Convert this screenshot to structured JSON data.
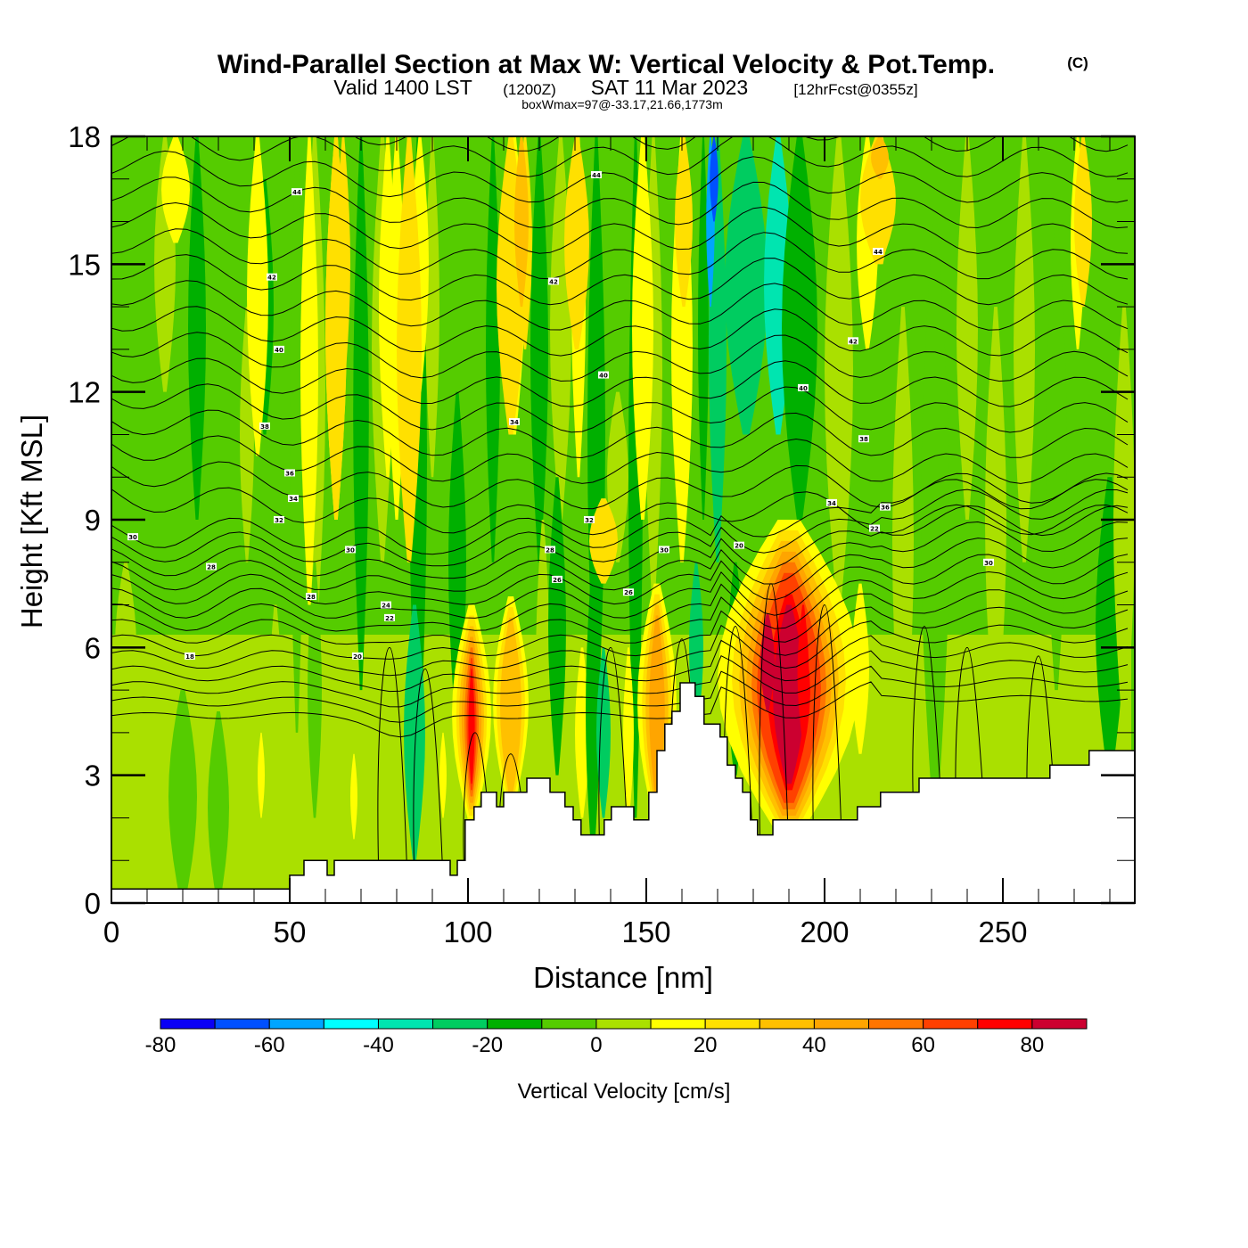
{
  "header": {
    "title": "Wind-Parallel Section at Max W: Vertical Velocity & Pot.Temp.",
    "copyright": "(C)",
    "valid_prefix": "Valid 1400 LST",
    "valid_utc": "(1200Z)",
    "valid_date": "SAT 11 Mar 2023",
    "forecast": "[12hrFcst@0355z]",
    "boxwmax": "boxWmax=97@-33.17,21.66,1773m"
  },
  "chart_data": {
    "type": "heatmap",
    "title": "Wind-Parallel Section at Max W: Vertical Velocity & Pot.Temp.",
    "xlabel": "Distance [nm]",
    "ylabel": "Height [Kft MSL]",
    "xlim": [
      0,
      287
    ],
    "ylim": [
      0,
      18
    ],
    "x_ticks": [
      "0",
      "50",
      "100",
      "150",
      "200",
      "250"
    ],
    "x_tick_values": [
      0,
      50,
      100,
      150,
      200,
      250
    ],
    "x_minor_step": 10,
    "y_ticks": [
      "0",
      "3",
      "6",
      "9",
      "12",
      "15",
      "18"
    ],
    "y_tick_values": [
      0,
      3,
      6,
      9,
      12,
      15,
      18
    ],
    "y_minor_step": 1,
    "colorbar": {
      "label": "Vertical Velocity [cm/s]",
      "levels": [
        -80,
        -70,
        -60,
        -50,
        -40,
        -30,
        -20,
        -10,
        0,
        10,
        20,
        30,
        40,
        50,
        60,
        70,
        80,
        90
      ],
      "colors": [
        "#0a00f5",
        "#0050ff",
        "#00a5ff",
        "#00ffff",
        "#00e5b0",
        "#00cc60",
        "#00b000",
        "#55cc00",
        "#aae000",
        "#ffff00",
        "#ffe000",
        "#ffc000",
        "#ffa500",
        "#ff7500",
        "#ff4000",
        "#ff0000",
        "#cc0030"
      ],
      "tick_labels": [
        "-80",
        "-60",
        "-40",
        "-20",
        "0",
        "20",
        "40",
        "60",
        "80"
      ],
      "tick_values": [
        -80,
        -60,
        -40,
        -20,
        0,
        20,
        40,
        60,
        80
      ]
    },
    "max_updraft": {
      "value": 97,
      "units": "cm/s",
      "distance_nm": 184,
      "height_kft": 5.5
    },
    "terrain_kft": [
      [
        0,
        0.33
      ],
      [
        50,
        0.33
      ],
      [
        50,
        0.65
      ],
      [
        54,
        0.65
      ],
      [
        54,
        1.0
      ],
      [
        60.5,
        1.0
      ],
      [
        60.5,
        0.65
      ],
      [
        62.5,
        0.65
      ],
      [
        62.5,
        1.0
      ],
      [
        95,
        1.0
      ],
      [
        95,
        0.65
      ],
      [
        97,
        0.65
      ],
      [
        97,
        1.0
      ],
      [
        99.2,
        1.0
      ],
      [
        99.2,
        1.95
      ],
      [
        101.7,
        1.95
      ],
      [
        101.7,
        2.26
      ],
      [
        103.7,
        2.26
      ],
      [
        103.7,
        2.6
      ],
      [
        108,
        2.6
      ],
      [
        108,
        2.26
      ],
      [
        110,
        2.26
      ],
      [
        110,
        2.6
      ],
      [
        116.5,
        2.6
      ],
      [
        116.5,
        2.93
      ],
      [
        123,
        2.93
      ],
      [
        123,
        2.6
      ],
      [
        127.2,
        2.6
      ],
      [
        127.2,
        2.26
      ],
      [
        129.5,
        2.26
      ],
      [
        129.5,
        1.95
      ],
      [
        131.7,
        1.95
      ],
      [
        131.7,
        1.6
      ],
      [
        138.2,
        1.6
      ],
      [
        138.2,
        1.95
      ],
      [
        140.2,
        1.95
      ],
      [
        140.2,
        2.26
      ],
      [
        146.5,
        2.26
      ],
      [
        146.5,
        1.95
      ],
      [
        150.7,
        1.95
      ],
      [
        150.7,
        2.6
      ],
      [
        153,
        2.6
      ],
      [
        153,
        3.58
      ],
      [
        155.2,
        3.58
      ],
      [
        155.2,
        4.2
      ],
      [
        157.2,
        4.2
      ],
      [
        157.2,
        4.5
      ],
      [
        159.5,
        4.5
      ],
      [
        159.5,
        5.17
      ],
      [
        163.7,
        5.17
      ],
      [
        163.7,
        4.85
      ],
      [
        166.2,
        4.85
      ],
      [
        166.2,
        4.2
      ],
      [
        170.7,
        4.2
      ],
      [
        170.7,
        3.9
      ],
      [
        172.7,
        3.9
      ],
      [
        172.7,
        3.24
      ],
      [
        175,
        3.24
      ],
      [
        175,
        2.93
      ],
      [
        177,
        2.93
      ],
      [
        177,
        2.6
      ],
      [
        179.2,
        2.6
      ],
      [
        179.2,
        1.95
      ],
      [
        181.2,
        1.95
      ],
      [
        181.2,
        1.6
      ],
      [
        185.5,
        1.6
      ],
      [
        185.5,
        1.95
      ],
      [
        209.2,
        1.95
      ],
      [
        209.2,
        2.26
      ],
      [
        215.7,
        2.26
      ],
      [
        215.7,
        2.6
      ],
      [
        226.5,
        2.6
      ],
      [
        226.5,
        2.93
      ],
      [
        263.2,
        2.93
      ],
      [
        263.2,
        3.24
      ],
      [
        274.2,
        3.24
      ],
      [
        274.2,
        3.58
      ],
      [
        287,
        3.58
      ]
    ],
    "theta_contour_labels": [
      "44",
      "44",
      "44",
      "42",
      "42",
      "42",
      "40",
      "40",
      "40",
      "38",
      "38",
      "36",
      "36",
      "34",
      "34",
      "34",
      "32",
      "32",
      "30",
      "30",
      "30",
      "30",
      "28",
      "28",
      "28",
      "26",
      "26",
      "24",
      "22",
      "22",
      "20",
      "20",
      "18"
    ],
    "velocity_cells": [
      {
        "x0": 14,
        "x1": 22,
        "y0": 15.5,
        "y1": 18,
        "level": 10
      },
      {
        "x0": 38,
        "x1": 44,
        "y0": 10.5,
        "y1": 18,
        "level": 10
      },
      {
        "x0": 53,
        "x1": 58,
        "y0": 7,
        "y1": 18,
        "level": 10
      },
      {
        "x0": 60,
        "x1": 66,
        "y0": 9,
        "y1": 18,
        "level": 20
      },
      {
        "x0": 75,
        "x1": 80,
        "y0": 10,
        "y1": 18,
        "level": 10
      },
      {
        "x0": 84,
        "x1": 89,
        "y0": 12,
        "y1": 18,
        "level": 10
      },
      {
        "x0": 63,
        "x1": 67,
        "y0": 12,
        "y1": 18,
        "level": 20
      },
      {
        "x0": 80,
        "x1": 87,
        "y0": 8,
        "y1": 18,
        "level": 20
      },
      {
        "x0": 108,
        "x1": 116,
        "y0": 11,
        "y1": 18,
        "level": 20
      },
      {
        "x0": 113,
        "x1": 117,
        "y0": 14,
        "y1": 18,
        "level": 30
      },
      {
        "x0": 127,
        "x1": 134,
        "y0": 13,
        "y1": 18,
        "level": 20
      },
      {
        "x0": 134,
        "x1": 142,
        "y0": 7.5,
        "y1": 9.5,
        "level": 20
      },
      {
        "x0": 146,
        "x1": 152,
        "y0": 9,
        "y1": 18,
        "level": 10
      },
      {
        "x0": 158,
        "x1": 163,
        "y0": 14,
        "y1": 18,
        "level": 20
      },
      {
        "x0": 210,
        "x1": 220,
        "y0": 15,
        "y1": 18,
        "level": 20
      },
      {
        "x0": 213,
        "x1": 218,
        "y0": 17,
        "y1": 18,
        "level": 30
      },
      {
        "x0": 270,
        "x1": 275,
        "y0": 14,
        "y1": 18,
        "level": 20
      }
    ]
  }
}
